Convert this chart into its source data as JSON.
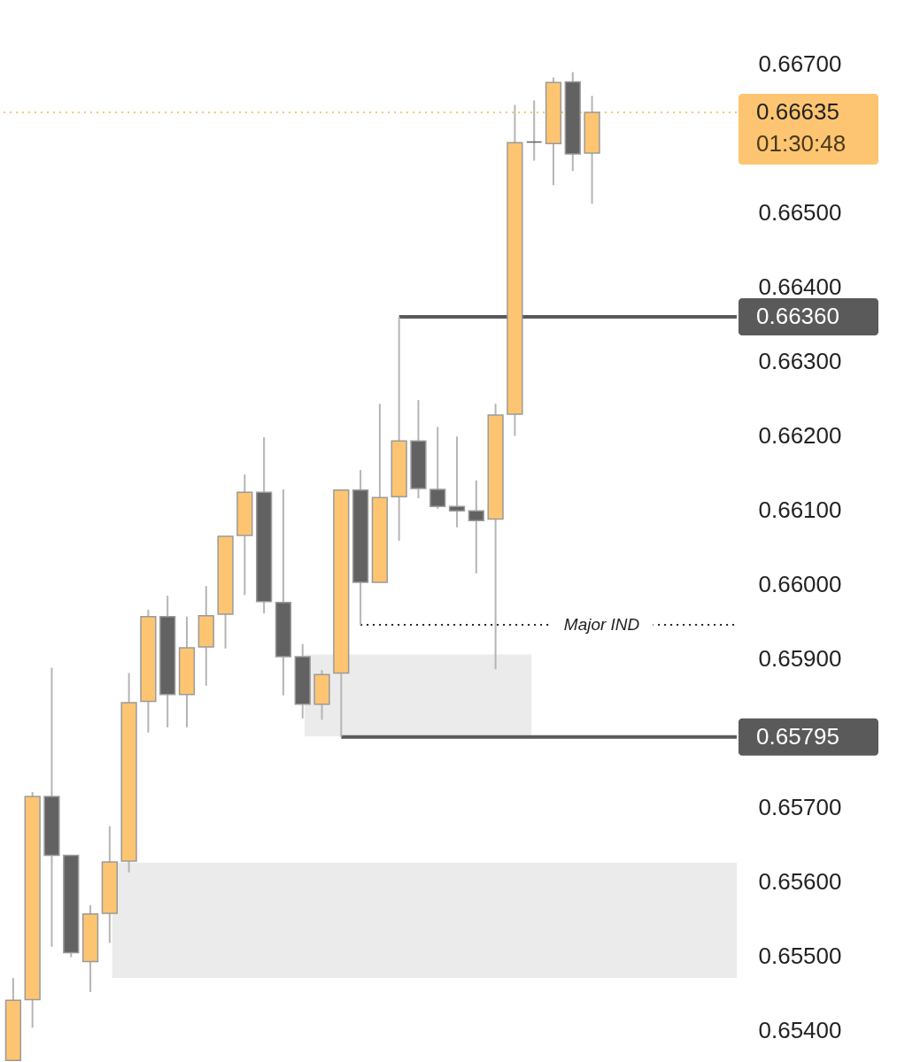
{
  "chart_data": {
    "type": "candlestick",
    "categories": [
      null,
      null,
      null,
      null,
      null,
      null,
      null,
      null,
      null,
      null,
      null,
      null,
      null,
      null,
      null,
      null,
      null,
      null,
      null,
      null,
      null,
      null,
      null,
      null,
      null,
      null,
      null,
      null,
      null,
      null,
      null,
      null,
      null,
      null,
      null,
      null,
      null,
      null
    ],
    "ohlc": [
      [
        0.6536,
        0.65471,
        0.6536,
        0.65441
      ],
      [
        0.65442,
        0.65721,
        0.65404,
        0.65715
      ],
      [
        0.65715,
        0.65888,
        0.65513,
        0.65636
      ],
      [
        0.65636,
        0.65636,
        0.65499,
        0.65505
      ],
      [
        0.65493,
        0.65569,
        0.65452,
        0.65557
      ],
      [
        0.65558,
        0.65675,
        0.65518,
        0.65627
      ],
      [
        0.65628,
        0.65881,
        0.65613,
        0.65841
      ],
      [
        0.65843,
        0.65966,
        0.65801,
        0.65957
      ],
      [
        0.65957,
        0.65985,
        0.65808,
        0.65852
      ],
      [
        0.65852,
        0.65957,
        0.65808,
        0.65915
      ],
      [
        0.65916,
        0.65998,
        0.65864,
        0.65958
      ],
      [
        0.6596,
        0.66065,
        0.65914,
        0.66065
      ],
      [
        0.66066,
        0.66148,
        0.65986,
        0.66124
      ],
      [
        0.66124,
        0.66198,
        0.65961,
        0.65977
      ],
      [
        0.65976,
        0.66128,
        0.65851,
        0.65903
      ],
      [
        0.65903,
        0.6592,
        0.6582,
        0.65839
      ],
      [
        0.65839,
        0.65885,
        0.65818,
        0.65879
      ],
      [
        0.65881,
        0.66127,
        0.65795,
        0.66127
      ],
      [
        0.66127,
        0.66154,
        0.65946,
        0.66003
      ],
      [
        0.66003,
        0.66243,
        0.66003,
        0.66117
      ],
      [
        0.66118,
        0.6636,
        0.66059,
        0.66193
      ],
      [
        0.66193,
        0.66248,
        0.66116,
        0.66129
      ],
      [
        0.66128,
        0.66212,
        0.66102,
        0.66105
      ],
      [
        0.66105,
        0.66199,
        0.66077,
        0.66099
      ],
      [
        0.66099,
        0.6614,
        0.66015,
        0.66086
      ],
      [
        0.66088,
        0.66243,
        0.65886,
        0.66228
      ],
      [
        0.66229,
        0.66645,
        0.662,
        0.66594
      ],
      [
        0.66595,
        0.66651,
        0.6657,
        0.66595
      ],
      [
        0.66593,
        0.66682,
        0.66537,
        0.66675
      ],
      [
        0.66676,
        0.66689,
        0.66556,
        0.66579
      ],
      [
        0.6658,
        0.66657,
        0.66512,
        0.66635
      ],
      null,
      null,
      null,
      null,
      null,
      null,
      null
    ],
    "colors": [
      "#fdc571",
      "#fdc571",
      "#626262",
      "#626262",
      "#fdc571",
      "#fdc571",
      "#fdc571",
      "#fdc571",
      "#626262",
      "#fdc571",
      "#fdc571",
      "#fdc571",
      "#fdc571",
      "#626262",
      "#626262",
      "#626262",
      "#fdc571",
      "#fdc571",
      "#626262",
      "#fdc571",
      "#fdc571",
      "#626262",
      "#626262",
      "#626262",
      "#626262",
      "#fdc571",
      "#fdc571",
      "#626262",
      "#fdc571",
      "#626262",
      "#fdc571",
      null,
      null,
      null,
      null,
      null,
      null,
      null
    ],
    "ylim": [
      0.65358,
      0.66786
    ],
    "yticks": [
      {
        "value": 0.654,
        "label": "0.65400"
      },
      {
        "value": 0.655,
        "label": "0.65500"
      },
      {
        "value": 0.656,
        "label": "0.65600"
      },
      {
        "value": 0.657,
        "label": "0.65700"
      },
      {
        "value": 0.659,
        "label": "0.65900"
      },
      {
        "value": 0.66,
        "label": "0.66000"
      },
      {
        "value": 0.661,
        "label": "0.66100"
      },
      {
        "value": 0.662,
        "label": "0.66200"
      },
      {
        "value": 0.663,
        "label": "0.66300"
      },
      {
        "value": 0.664,
        "label": "0.66400"
      },
      {
        "value": 0.665,
        "label": "0.66500"
      },
      {
        "value": 0.667,
        "label": "0.66700"
      }
    ],
    "tick_labels": "y",
    "ref_lines": [
      {
        "axis": "y",
        "value": 0.66635,
        "label": "0.66635",
        "color": "#fdc571",
        "line_style": "dotted"
      },
      {
        "axis": "y",
        "value": 0.6636,
        "label": "0.66360",
        "color": "#5a5a5a",
        "line_style": "solid"
      },
      {
        "axis": "y",
        "value": 0.65795,
        "label": "0.65795",
        "color": "#5a5a5a",
        "line_style": "solid"
      },
      {
        "axis": "y",
        "value": 0.65946,
        "label": "Major IND",
        "color": "#222222",
        "line_style": "dotted"
      }
    ],
    "bands": [
      {
        "axis": "y",
        "from": 0.65796,
        "to": 0.65906,
        "color": "#ebebeb"
      },
      {
        "axis": "y",
        "from": 0.65471,
        "to": 0.65626,
        "color": "#ebebeb"
      }
    ],
    "annotations": [
      "01:30:48"
    ]
  }
}
